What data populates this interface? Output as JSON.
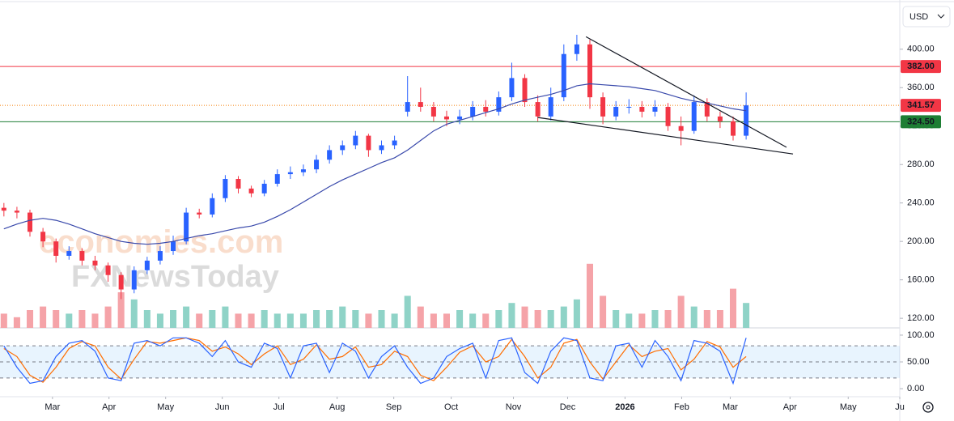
{
  "chart_data": {
    "type": "candlestick",
    "currency": "USD",
    "watermark": {
      "line1": "economies.com",
      "line2": "FXNewsToday"
    },
    "x": [
      0,
      1,
      2,
      3,
      4,
      5,
      6,
      7,
      8,
      9,
      10,
      11,
      12,
      13,
      14,
      15,
      16,
      17,
      18,
      19,
      20,
      21,
      22,
      23,
      24,
      25,
      26,
      27,
      28,
      29,
      30,
      31,
      32,
      33,
      34,
      35,
      36,
      37,
      38,
      39,
      40,
      41,
      42,
      43,
      44,
      45,
      46,
      47,
      48,
      49,
      50,
      51,
      52,
      53,
      54,
      55,
      56,
      57
    ],
    "xlim": [
      -0.3,
      68.8
    ],
    "xticks": [
      {
        "value": 3.73,
        "label": "Mar"
      },
      {
        "value": 8.07,
        "label": "Apr"
      },
      {
        "value": 12.42,
        "label": "May"
      },
      {
        "value": 16.77,
        "label": "Jun"
      },
      {
        "value": 21.12,
        "label": "Jul"
      },
      {
        "value": 25.59,
        "label": "Aug"
      },
      {
        "value": 29.94,
        "label": "Sep"
      },
      {
        "value": 34.35,
        "label": "Oct"
      },
      {
        "value": 39.13,
        "label": "Nov"
      },
      {
        "value": 43.29,
        "label": "Dec"
      },
      {
        "value": 47.7,
        "label": "2026"
      },
      {
        "value": 52.05,
        "label": "Feb"
      },
      {
        "value": 55.78,
        "label": "Mar"
      },
      {
        "value": 60.37,
        "label": "Apr"
      },
      {
        "value": 64.84,
        "label": "May"
      },
      {
        "value": 68.8,
        "label": "Ju"
      }
    ],
    "ylim": [
      110,
      447
    ],
    "yticks": [
      {
        "value": 120,
        "label": "120.00"
      },
      {
        "value": 160,
        "label": "160.00"
      },
      {
        "value": 200,
        "label": "200.00"
      },
      {
        "value": 240,
        "label": "240.00"
      },
      {
        "value": 280,
        "label": "280.00"
      },
      {
        "value": 320,
        "label": "320.00"
      },
      {
        "value": 360,
        "label": "360.00"
      },
      {
        "value": 400,
        "label": "400.00"
      }
    ],
    "up_color": "#2962ff",
    "down_color": "#f23645",
    "ohlc": {
      "open": [
        235,
        232,
        230,
        210,
        200,
        185,
        190,
        180,
        175,
        165,
        150,
        170,
        180,
        190,
        200,
        230,
        228,
        245,
        265,
        255,
        250,
        260,
        270,
        272,
        275,
        285,
        295,
        300,
        310,
        295,
        300,
        335,
        345,
        340,
        330,
        327,
        330,
        340,
        335,
        350,
        370,
        345,
        330,
        350,
        395,
        405,
        350,
        330,
        340,
        340,
        335,
        340,
        320,
        315,
        345,
        330,
        325,
        310
      ],
      "high": [
        240,
        236,
        233,
        214,
        203,
        195,
        193,
        185,
        178,
        168,
        174,
        184,
        195,
        206,
        235,
        234,
        250,
        269,
        268,
        258,
        264,
        275,
        278,
        280,
        290,
        300,
        305,
        315,
        312,
        305,
        310,
        372,
        360,
        345,
        336,
        337,
        346,
        347,
        356,
        386,
        374,
        352,
        360,
        405,
        415,
        410,
        355,
        346,
        348,
        346,
        347,
        344,
        330,
        352,
        349,
        335,
        330,
        355
      ],
      "low": [
        226,
        224,
        205,
        194,
        178,
        181,
        175,
        170,
        158,
        140,
        146,
        166,
        176,
        186,
        197,
        224,
        225,
        241,
        250,
        246,
        247,
        257,
        265,
        268,
        271,
        281,
        290,
        296,
        288,
        291,
        296,
        330,
        335,
        325,
        320,
        322,
        326,
        330,
        331,
        346,
        340,
        325,
        326,
        346,
        388,
        338,
        322,
        326,
        333,
        329,
        330,
        315,
        300,
        312,
        325,
        318,
        305,
        306
      ],
      "close": [
        232,
        230,
        210,
        200,
        185,
        190,
        180,
        175,
        165,
        150,
        170,
        180,
        190,
        200,
        230,
        228,
        245,
        265,
        255,
        250,
        260,
        270,
        272,
        275,
        285,
        295,
        300,
        310,
        295,
        300,
        305,
        345,
        340,
        330,
        327,
        330,
        340,
        335,
        350,
        370,
        345,
        330,
        350,
        395,
        405,
        350,
        330,
        340,
        340,
        335,
        340,
        320,
        315,
        345,
        330,
        325,
        310,
        341.57
      ]
    },
    "moving_average": {
      "color": "#3949ab",
      "values": [
        213,
        218,
        222,
        224,
        222,
        218,
        213,
        208,
        204,
        200,
        198,
        197,
        198,
        200,
        203,
        206,
        208,
        211,
        214,
        216,
        220,
        226,
        233,
        241,
        249,
        257,
        264,
        270,
        276,
        282,
        287,
        295,
        305,
        315,
        322,
        326,
        330,
        334,
        338,
        343,
        347,
        350,
        353,
        357,
        362,
        364,
        363,
        362,
        361,
        359,
        357,
        353,
        349,
        346,
        344,
        341,
        338,
        336
      ]
    },
    "volume": {
      "ylim": [
        0,
        25
      ],
      "up_color": "#8fd3c7",
      "down_color": "#f5a3a8",
      "values": [
        4,
        3,
        5,
        6,
        5,
        4,
        5,
        4,
        6,
        10,
        8,
        5,
        4,
        5,
        6,
        4,
        5,
        6,
        4,
        4,
        5,
        4,
        4,
        4,
        5,
        5,
        6,
        5,
        4,
        5,
        4,
        9,
        6,
        4,
        4,
        5,
        4,
        4,
        5,
        7,
        6,
        5,
        5,
        6,
        8,
        18,
        9,
        5,
        4,
        4,
        5,
        5,
        9,
        6,
        5,
        5,
        11,
        7
      ]
    },
    "levels": [
      {
        "value": 382,
        "label": "382.00",
        "color": "#f23645",
        "style": "solid"
      },
      {
        "value": 341.57,
        "label": "341.57",
        "color": "#f23645",
        "style": "dotted"
      },
      {
        "value": 324.5,
        "label": "324.50",
        "color": "#1e7e34",
        "style": "solid"
      }
    ],
    "trendlines": [
      {
        "x": [
          44.7,
          60.1
        ],
        "y": [
          413,
          298
        ]
      },
      {
        "x": [
          41,
          60.6
        ],
        "y": [
          329,
          291
        ]
      }
    ],
    "stochastic": {
      "ylim": [
        -15,
        109
      ],
      "yticks": [
        {
          "value": 100,
          "label": "100.00"
        },
        {
          "value": 50,
          "label": "50.00"
        },
        {
          "value": 0,
          "label": "0.00"
        }
      ],
      "bands": [
        80,
        50,
        20
      ],
      "k": {
        "color": "#2962ff",
        "values": [
          80,
          40,
          10,
          15,
          60,
          85,
          90,
          70,
          20,
          15,
          85,
          90,
          80,
          95,
          95,
          85,
          60,
          90,
          50,
          40,
          85,
          75,
          20,
          80,
          85,
          30,
          85,
          70,
          20,
          60,
          80,
          40,
          10,
          20,
          60,
          75,
          85,
          20,
          90,
          95,
          30,
          10,
          70,
          95,
          90,
          20,
          15,
          80,
          85,
          40,
          90,
          60,
          15,
          90,
          85,
          70,
          10,
          95
        ]
      },
      "d": {
        "color": "#ff6d00",
        "values": [
          75,
          60,
          25,
          12,
          40,
          75,
          88,
          80,
          40,
          18,
          55,
          88,
          85,
          90,
          95,
          90,
          70,
          78,
          65,
          45,
          65,
          80,
          45,
          55,
          82,
          55,
          60,
          78,
          40,
          45,
          70,
          60,
          25,
          15,
          40,
          68,
          80,
          50,
          60,
          92,
          60,
          20,
          40,
          85,
          92,
          50,
          18,
          50,
          82,
          60,
          70,
          75,
          35,
          55,
          88,
          78,
          40,
          60
        ]
      }
    }
  }
}
